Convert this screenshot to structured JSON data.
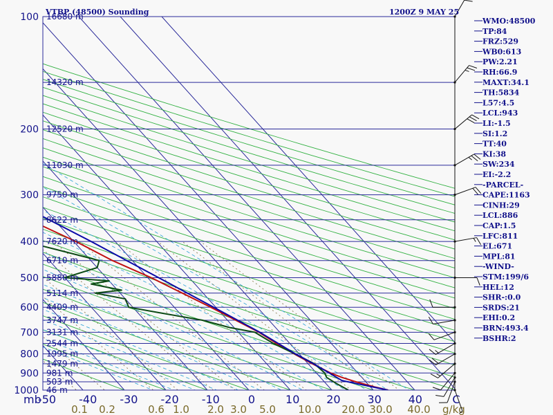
{
  "header": {
    "station": "VTBP (48500) Sounding",
    "datetime": "1200Z  9 MAY 25"
  },
  "axes": {
    "pressure_unit": "mb",
    "mixing_ratio_unit": "g/kg",
    "pressure_labels": [
      "100",
      "200",
      "300",
      "400",
      "500",
      "600",
      "700",
      "800",
      "900",
      "1000"
    ],
    "temp_labels": [
      "-50",
      "-40",
      "-30",
      "-20",
      "-10",
      "0",
      "10",
      "20",
      "30",
      "40",
      "C"
    ],
    "mixing_ratio_labels": [
      "0.1",
      "0.2",
      "0.6",
      "1.0",
      "2.0",
      "3.0",
      "5.0",
      "10.0",
      "20.0",
      "30.0",
      "40.0"
    ]
  },
  "indices": [
    "WMO:48500",
    "TP:84",
    "FRZ:529",
    "WB0:613",
    "PW:2.21",
    "RH:66.9",
    "MAXT:34.1",
    "TH:5834",
    "L57:4.5",
    "LCL:943",
    "LI:-1.5",
    "SI:1.2",
    "TT:40",
    "KI:38",
    "SW:234",
    "EI:-2.2",
    "-PARCEL-",
    "CAPE:1163",
    "CINH:29",
    "LCL:886",
    "CAP:1.5",
    "LFC:811",
    "EL:671",
    "MPL:81",
    "-WIND-",
    "STM:199/6",
    "HEL:12",
    "SHR-:0.0",
    "SRDS:21",
    "EHI:0.2",
    "BRN:493.4",
    "BSHR:2"
  ],
  "chart_data": {
    "type": "line",
    "title": "VTBP (48500) Sounding",
    "subtitle": "1200Z  9 MAY 25",
    "xlabel": "C",
    "ylabel": "mb",
    "x_range": [
      -50,
      50
    ],
    "y_range": [
      100,
      1000
    ],
    "y_scale": "log",
    "skew": true,
    "grid": true,
    "heights": [
      {
        "p": 100,
        "label": "16680 m"
      },
      {
        "p": 150,
        "label": "14320 m"
      },
      {
        "p": 200,
        "label": "12520 m"
      },
      {
        "p": 250,
        "label": "11030 m"
      },
      {
        "p": 300,
        "label": "9750 m"
      },
      {
        "p": 350,
        "label": "8622 m"
      },
      {
        "p": 400,
        "label": "7620 m"
      },
      {
        "p": 450,
        "label": "6710 m"
      },
      {
        "p": 500,
        "label": "5880 m"
      },
      {
        "p": 550,
        "label": "5114 m"
      },
      {
        "p": 600,
        "label": "4409 m"
      },
      {
        "p": 650,
        "label": "3747 m"
      },
      {
        "p": 700,
        "label": "3131 m"
      },
      {
        "p": 750,
        "label": "2544 m"
      },
      {
        "p": 800,
        "label": "1995 m"
      },
      {
        "p": 850,
        "label": "1479 m"
      },
      {
        "p": 900,
        "label": "981 m"
      },
      {
        "p": 950,
        "label": "503 m"
      },
      {
        "p": 1000,
        "label": "46 m"
      }
    ],
    "series": [
      {
        "key": "temperature",
        "color": "#c01010",
        "points": [
          [
            1000,
            33.6
          ],
          [
            980,
            31
          ],
          [
            950,
            27.6
          ],
          [
            925,
            25.2
          ],
          [
            900,
            23.4
          ],
          [
            850,
            21
          ],
          [
            800,
            18.8
          ],
          [
            750,
            16.8
          ],
          [
            700,
            15
          ],
          [
            650,
            12
          ],
          [
            600,
            8.8
          ],
          [
            550,
            5
          ],
          [
            500,
            0.8
          ],
          [
            450,
            -4.8
          ],
          [
            400,
            -9.5
          ],
          [
            350,
            -16
          ],
          [
            300,
            -24.5
          ],
          [
            250,
            -34
          ],
          [
            200,
            -46.5
          ],
          [
            150,
            -62
          ],
          [
            125,
            -71
          ],
          [
            110,
            -72.5
          ],
          [
            100,
            -76
          ]
        ]
      },
      {
        "key": "dewpoint",
        "color": "#0c4a14",
        "points": [
          [
            1000,
            24
          ],
          [
            960,
            22.5
          ],
          [
            925,
            21.5
          ],
          [
            900,
            22
          ],
          [
            850,
            21.5
          ],
          [
            800,
            19
          ],
          [
            750,
            16
          ],
          [
            700,
            14
          ],
          [
            680,
            9
          ],
          [
            650,
            4
          ],
          [
            620,
            -5
          ],
          [
            600,
            -11
          ],
          [
            570,
            -10
          ],
          [
            550,
            -16
          ],
          [
            540,
            -9
          ],
          [
            520,
            -15
          ],
          [
            510,
            -10
          ],
          [
            500,
            -20
          ],
          [
            470,
            -10
          ],
          [
            450,
            -8
          ],
          [
            420,
            -16
          ],
          [
            400,
            -22
          ],
          [
            380,
            -29
          ],
          [
            350,
            -39
          ],
          [
            330,
            -33
          ],
          [
            300,
            -29
          ],
          [
            250,
            -36
          ],
          [
            200,
            -48
          ],
          [
            180,
            -51
          ],
          [
            150,
            -61
          ],
          [
            135,
            -64
          ],
          [
            125,
            -73
          ],
          [
            120,
            -78
          ],
          [
            115,
            -80
          ],
          [
            110,
            -78
          ],
          [
            100,
            -80
          ]
        ]
      },
      {
        "key": "parcel",
        "color": "#0a0aa8",
        "points": [
          [
            1000,
            33.5
          ],
          [
            943,
            24.5
          ],
          [
            900,
            23.1
          ],
          [
            850,
            21.3
          ],
          [
            800,
            19.1
          ],
          [
            700,
            15.2
          ],
          [
            600,
            9.5
          ],
          [
            500,
            2.6
          ],
          [
            400,
            -5.8
          ],
          [
            300,
            -17.5
          ],
          [
            250,
            -26
          ],
          [
            200,
            -37.5
          ],
          [
            150,
            -55
          ],
          [
            120,
            -68
          ],
          [
            100,
            -78
          ]
        ]
      }
    ],
    "wind_barbs": [
      {
        "p": 1000,
        "dir": 160,
        "spd": 5
      },
      {
        "p": 950,
        "dir": 200,
        "spd": 10
      },
      {
        "p": 925,
        "dir": 210,
        "spd": 10
      },
      {
        "p": 900,
        "dir": 220,
        "spd": 10
      },
      {
        "p": 850,
        "dir": 230,
        "spd": 15
      },
      {
        "p": 800,
        "dir": 240,
        "spd": 20
      },
      {
        "p": 750,
        "dir": 240,
        "spd": 15
      },
      {
        "p": 700,
        "dir": 250,
        "spd": 10
      },
      {
        "p": 650,
        "dir": 260,
        "spd": 10
      },
      {
        "p": 600,
        "dir": 270,
        "spd": 10
      },
      {
        "p": 500,
        "dir": 90,
        "spd": 10
      },
      {
        "p": 400,
        "dir": 80,
        "spd": 15
      },
      {
        "p": 300,
        "dir": 70,
        "spd": 20
      },
      {
        "p": 250,
        "dir": 60,
        "spd": 25
      },
      {
        "p": 200,
        "dir": 50,
        "spd": 30
      },
      {
        "p": 150,
        "dir": 40,
        "spd": 25
      },
      {
        "p": 100,
        "dir": 30,
        "spd": 20
      }
    ]
  }
}
